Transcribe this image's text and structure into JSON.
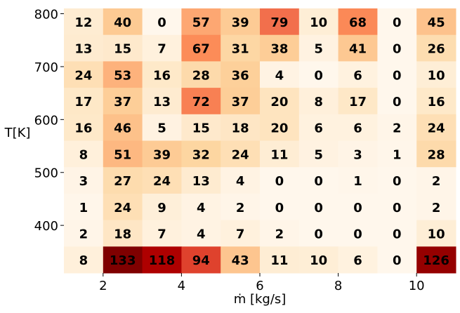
{
  "chart_data": {
    "type": "heatmap",
    "title": "",
    "xlabel": "ṁ [kg/s]",
    "ylabel": "T[K]",
    "colormap": "OrRd",
    "x_centers": [
      1.5,
      2.5,
      3.5,
      4.5,
      5.5,
      6.5,
      7.5,
      8.5,
      9.5,
      10.5
    ],
    "x_bin_edges": [
      1,
      2,
      3,
      4,
      5,
      6,
      7,
      8,
      9,
      10,
      11
    ],
    "x_ticks": [
      2,
      4,
      6,
      8,
      10
    ],
    "y_ticks": [
      400,
      500,
      600,
      700,
      800
    ],
    "y_range": [
      310,
      810
    ],
    "rows_top_to_bottom": [
      [
        12,
        40,
        0,
        57,
        39,
        79,
        10,
        68,
        0,
        45
      ],
      [
        13,
        15,
        7,
        67,
        31,
        38,
        5,
        41,
        0,
        26
      ],
      [
        24,
        53,
        16,
        28,
        36,
        4,
        0,
        6,
        0,
        10
      ],
      [
        17,
        37,
        13,
        72,
        37,
        20,
        8,
        17,
        0,
        16
      ],
      [
        16,
        46,
        5,
        15,
        18,
        20,
        6,
        6,
        2,
        24
      ],
      [
        8,
        51,
        39,
        32,
        24,
        11,
        5,
        3,
        1,
        28
      ],
      [
        3,
        27,
        24,
        13,
        4,
        0,
        0,
        1,
        0,
        2
      ],
      [
        1,
        24,
        9,
        4,
        2,
        0,
        0,
        0,
        0,
        2
      ],
      [
        2,
        18,
        7,
        4,
        7,
        2,
        0,
        0,
        0,
        10
      ],
      [
        8,
        133,
        118,
        94,
        43,
        11,
        10,
        6,
        0,
        126
      ]
    ],
    "vmin": 0,
    "vmax": 133
  },
  "axes": {
    "xlabel": "ṁ [kg/s]",
    "ylabel": "T[K]"
  }
}
